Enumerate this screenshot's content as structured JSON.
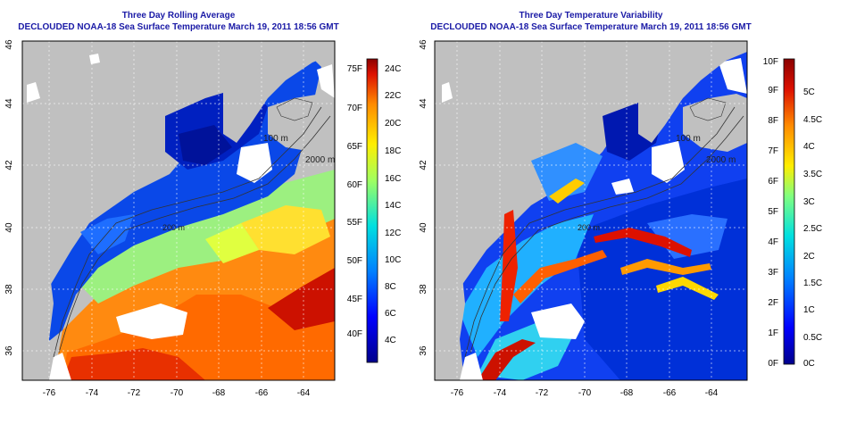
{
  "left_panel": {
    "title": "Three Day Rolling Average",
    "subtitle": "DECLOUDED NOAA-18 Sea Surface Temperature March 19, 2011 18:56 GMT",
    "lon_ticks": [
      "-76",
      "-74",
      "-72",
      "-70",
      "-68",
      "-66",
      "-64"
    ],
    "lat_ticks": [
      "36",
      "38",
      "40",
      "42",
      "44",
      "46"
    ],
    "colorbar": {
      "fahrenheit_labels": [
        "75F",
        "70F",
        "65F",
        "60F",
        "55F",
        "50F",
        "45F",
        "40F"
      ],
      "celsius_labels": [
        "24C",
        "22C",
        "20C",
        "18C",
        "16C",
        "14C",
        "12C",
        "10C",
        "8C",
        "6C",
        "4C"
      ]
    }
  },
  "right_panel": {
    "title": "Three Day Temperature Variability",
    "subtitle": "DECLOUDED NOAA-18 Sea Surface Temperature March 19, 2011 18:56 GMT",
    "lon_ticks": [
      "-76",
      "-74",
      "-72",
      "-70",
      "-68",
      "-66",
      "-64"
    ],
    "lat_ticks": [
      "36",
      "38",
      "40",
      "42",
      "44",
      "46"
    ],
    "colorbar": {
      "fahrenheit_labels": [
        "10F",
        "9F",
        "8F",
        "7F",
        "6F",
        "5F",
        "4F",
        "3F",
        "2F",
        "1F",
        "0F"
      ],
      "celsius_labels": [
        "5C",
        "4.5C",
        "4C",
        "3.5C",
        "3C",
        "2.5C",
        "2C",
        "1.5C",
        "1C",
        "0.5C",
        "0C"
      ]
    }
  },
  "depth_labels": [
    "100 m",
    "2000 m",
    "200 m"
  ],
  "colors": {
    "land": "#c0c0c0",
    "title_text": "#1a1aa6",
    "scale_dark_blue": "#00008b",
    "scale_blue": "#0050ff",
    "scale_cyan": "#00e0e0",
    "scale_yellow": "#ffee00",
    "scale_orange": "#ff8c00",
    "scale_red": "#cc0000",
    "scale_dark_red": "#8b0000"
  }
}
